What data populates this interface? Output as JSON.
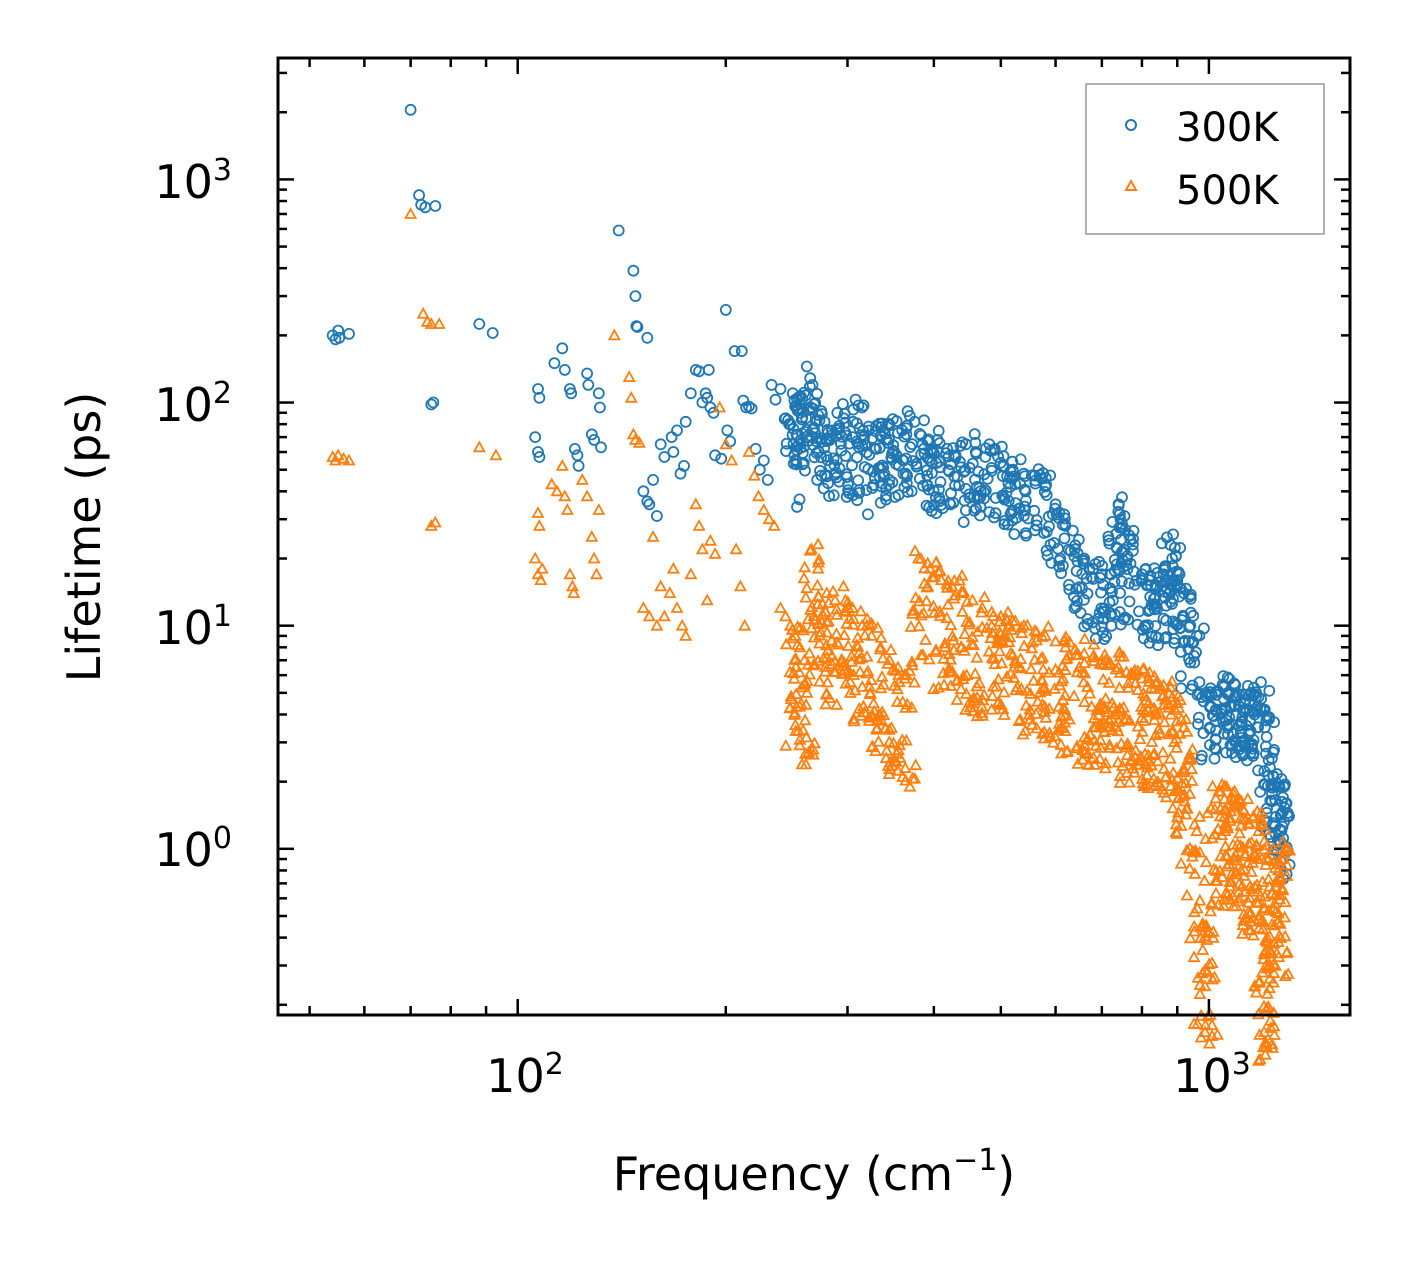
{
  "chart_data": {
    "type": "scatter",
    "title": "",
    "xscale": "log",
    "yscale": "log",
    "xlabel": "Frequency (cm",
    "xlabel_sup": "−1",
    "xlabel_close": ")",
    "ylabel": "Lifetime (ps)",
    "xlim": [
      45,
      1600
    ],
    "ylim": [
      0.18,
      3500
    ],
    "x_ticks": [
      {
        "base": "10",
        "exp": "2",
        "value": 100
      },
      {
        "base": "10",
        "exp": "3",
        "value": 1000
      }
    ],
    "y_ticks": [
      {
        "base": "10",
        "exp": "0",
        "value": 1
      },
      {
        "base": "10",
        "exp": "1",
        "value": 10
      },
      {
        "base": "10",
        "exp": "2",
        "value": 100
      },
      {
        "base": "10",
        "exp": "3",
        "value": 1000
      }
    ],
    "legend_position": "top-right",
    "series": [
      {
        "name": "300K",
        "marker": "circle",
        "color": "#1f77b4",
        "points": [
          [
            54,
            200
          ],
          [
            54.5,
            192
          ],
          [
            55,
            210
          ],
          [
            55.2,
            195
          ],
          [
            57,
            203
          ],
          [
            70,
            2050
          ],
          [
            72,
            850
          ],
          [
            72.5,
            770
          ],
          [
            73.5,
            750
          ],
          [
            76,
            760
          ],
          [
            75,
            98
          ],
          [
            75.5,
            100
          ],
          [
            88,
            225
          ],
          [
            92,
            205
          ],
          [
            107,
            115
          ],
          [
            107.5,
            105
          ],
          [
            106,
            70
          ],
          [
            107,
            60
          ],
          [
            107.5,
            57
          ],
          [
            113,
            150
          ],
          [
            116,
            175
          ],
          [
            117,
            140
          ],
          [
            119,
            115
          ],
          [
            119.5,
            110
          ],
          [
            121,
            62
          ],
          [
            122,
            58
          ],
          [
            122.5,
            52
          ],
          [
            126,
            135
          ],
          [
            126.5,
            120
          ],
          [
            128,
            72
          ],
          [
            129,
            68
          ],
          [
            131,
            110
          ],
          [
            132,
            63
          ],
          [
            131.5,
            95
          ],
          [
            140,
            590
          ],
          [
            147,
            390
          ],
          [
            148,
            300
          ],
          [
            148.5,
            220
          ],
          [
            149,
            218
          ],
          [
            154,
            195
          ],
          [
            152,
            40
          ],
          [
            154,
            36
          ],
          [
            155,
            35
          ],
          [
            157,
            45
          ],
          [
            159,
            31
          ],
          [
            161,
            65
          ],
          [
            163,
            57
          ],
          [
            167,
            70
          ],
          [
            168,
            60
          ],
          [
            170,
            75
          ],
          [
            172,
            48
          ],
          [
            174,
            52
          ],
          [
            175,
            82
          ],
          [
            178,
            110
          ],
          [
            181,
            140
          ],
          [
            183,
            138
          ],
          [
            185,
            100
          ],
          [
            187,
            110
          ],
          [
            188,
            105
          ],
          [
            189,
            140
          ],
          [
            190,
            95
          ],
          [
            192,
            90
          ],
          [
            193,
            58
          ],
          [
            197,
            56
          ],
          [
            200,
            260
          ],
          [
            201,
            75
          ],
          [
            203,
            67
          ],
          [
            206,
            170
          ],
          [
            211,
            170
          ],
          [
            212,
            102
          ],
          [
            214,
            95
          ],
          [
            216,
            96
          ],
          [
            218,
            94
          ],
          [
            221,
            62
          ],
          [
            224,
            50
          ],
          [
            227,
            55
          ],
          [
            230,
            45
          ],
          [
            233,
            120
          ],
          [
            236,
            103
          ],
          [
            240,
            115
          ],
          [
            244,
            85
          ],
          [
            247,
            80
          ],
          [
            250,
            110
          ],
          [
            252,
            96
          ],
          [
            255,
            65
          ],
          [
            262,
            145
          ],
          [
            267,
            120
          ],
          [
            272,
            88
          ],
          [
            278,
            82
          ],
          [
            285,
            75
          ],
          [
            290,
            90
          ],
          [
            296,
            85
          ],
          [
            305,
            70
          ],
          [
            315,
            95
          ],
          [
            322,
            78
          ],
          [
            330,
            62
          ],
          [
            338,
            75
          ],
          [
            345,
            80
          ],
          [
            355,
            73
          ],
          [
            365,
            72
          ],
          [
            375,
            82
          ],
          [
            385,
            65
          ],
          [
            395,
            55
          ],
          [
            405,
            68
          ],
          [
            418,
            62
          ],
          [
            430,
            58
          ],
          [
            445,
            65
          ],
          [
            460,
            60
          ],
          [
            475,
            57
          ],
          [
            490,
            62
          ],
          [
            505,
            52
          ],
          [
            520,
            50
          ],
          [
            540,
            48
          ],
          [
            560,
            47
          ],
          [
            580,
            42
          ],
          [
            600,
            35
          ],
          [
            620,
            28
          ],
          [
            640,
            22
          ],
          [
            660,
            20
          ],
          [
            680,
            18
          ],
          [
            700,
            17
          ],
          [
            720,
            17
          ],
          [
            740,
            35
          ],
          [
            745,
            30
          ],
          [
            755,
            31
          ],
          [
            770,
            19
          ],
          [
            800,
            17
          ],
          [
            820,
            16
          ],
          [
            840,
            15
          ],
          [
            860,
            17
          ],
          [
            880,
            23
          ],
          [
            885,
            20
          ],
          [
            900,
            16
          ],
          [
            920,
            14
          ],
          [
            940,
            10
          ],
          [
            960,
            9
          ],
          [
            990,
            5
          ],
          [
            1010,
            4.9
          ],
          [
            1030,
            5.1
          ],
          [
            1050,
            5.3
          ],
          [
            1070,
            5.0
          ],
          [
            1090,
            4.8
          ],
          [
            1110,
            4.6
          ],
          [
            1130,
            4.9
          ],
          [
            1150,
            5.0
          ],
          [
            1170,
            4.8
          ],
          [
            1190,
            4.7
          ],
          [
            1205,
            3.5
          ],
          [
            1220,
            2.5
          ],
          [
            1240,
            2.1
          ],
          [
            1260,
            1.9
          ],
          [
            1280,
            1.7
          ],
          [
            1295,
            1.6
          ],
          [
            1300,
            1.4
          ]
        ]
      },
      {
        "name": "500K",
        "marker": "triangle",
        "color": "#ff7f0e",
        "points": [
          [
            54,
            57
          ],
          [
            54.5,
            55
          ],
          [
            55,
            58
          ],
          [
            56,
            56
          ],
          [
            57,
            55
          ],
          [
            70,
            700
          ],
          [
            73,
            250
          ],
          [
            74,
            230
          ],
          [
            75,
            225
          ],
          [
            77,
            225
          ],
          [
            75,
            28
          ],
          [
            76,
            29
          ],
          [
            88,
            63
          ],
          [
            93,
            58
          ],
          [
            107,
            32
          ],
          [
            107.5,
            28
          ],
          [
            106,
            20
          ],
          [
            107,
            17
          ],
          [
            108,
            16
          ],
          [
            108.5,
            18
          ],
          [
            112,
            43
          ],
          [
            114,
            40
          ],
          [
            116,
            52
          ],
          [
            117,
            38
          ],
          [
            118,
            33
          ],
          [
            119,
            17
          ],
          [
            120,
            15
          ],
          [
            120.5,
            14
          ],
          [
            124,
            45
          ],
          [
            126,
            38
          ],
          [
            128,
            25
          ],
          [
            129,
            20
          ],
          [
            130,
            17
          ],
          [
            131,
            33
          ],
          [
            138,
            200
          ],
          [
            145,
            130
          ],
          [
            146,
            105
          ],
          [
            147,
            72
          ],
          [
            148,
            68
          ],
          [
            150,
            66
          ],
          [
            152,
            12
          ],
          [
            155,
            11
          ],
          [
            157,
            25
          ],
          [
            159,
            10
          ],
          [
            161,
            15
          ],
          [
            163,
            11
          ],
          [
            166,
            14
          ],
          [
            168,
            18
          ],
          [
            170,
            12
          ],
          [
            173,
            10
          ],
          [
            175,
            9
          ],
          [
            178,
            17
          ],
          [
            181,
            35
          ],
          [
            183,
            28
          ],
          [
            185,
            22
          ],
          [
            188,
            13
          ],
          [
            190,
            24
          ],
          [
            193,
            21
          ],
          [
            196,
            95
          ],
          [
            200,
            65
          ],
          [
            204,
            55
          ],
          [
            207,
            22
          ],
          [
            210,
            15
          ],
          [
            213,
            10
          ],
          [
            216,
            60
          ],
          [
            220,
            47
          ],
          [
            223,
            38
          ],
          [
            227,
            33
          ],
          [
            231,
            30
          ],
          [
            235,
            28
          ],
          [
            240,
            12
          ],
          [
            244,
            11
          ],
          [
            248,
            10
          ],
          [
            252,
            9
          ],
          [
            256,
            8
          ],
          [
            260,
            7
          ],
          [
            266,
            22
          ],
          [
            272,
            18
          ],
          [
            280,
            14
          ],
          [
            288,
            13
          ],
          [
            296,
            15
          ],
          [
            305,
            12
          ],
          [
            315,
            10
          ],
          [
            325,
            9
          ],
          [
            335,
            8
          ],
          [
            345,
            7
          ],
          [
            355,
            6.5
          ],
          [
            365,
            6
          ],
          [
            380,
            20
          ],
          [
            395,
            18
          ],
          [
            410,
            16
          ],
          [
            425,
            15
          ],
          [
            440,
            14
          ],
          [
            455,
            13
          ],
          [
            470,
            12
          ],
          [
            485,
            11.5
          ],
          [
            500,
            11
          ],
          [
            520,
            10.5
          ],
          [
            540,
            10
          ],
          [
            560,
            9.5
          ],
          [
            580,
            9
          ],
          [
            600,
            8.5
          ],
          [
            620,
            8
          ],
          [
            640,
            7.8
          ],
          [
            660,
            7.5
          ],
          [
            680,
            7.2
          ],
          [
            700,
            7
          ],
          [
            720,
            6.8
          ],
          [
            740,
            6.5
          ],
          [
            760,
            6.2
          ],
          [
            780,
            6
          ],
          [
            800,
            5.8
          ],
          [
            820,
            5.6
          ],
          [
            840,
            5.5
          ],
          [
            860,
            5.4
          ],
          [
            880,
            5.3
          ],
          [
            900,
            4.5
          ],
          [
            920,
            3.5
          ],
          [
            940,
            2.5
          ],
          [
            960,
            1.2
          ],
          [
            980,
            0.45
          ],
          [
            1000,
            0.42
          ],
          [
            1020,
            1.5
          ],
          [
            1040,
            1.8
          ],
          [
            1060,
            1.9
          ],
          [
            1080,
            1.7
          ],
          [
            1100,
            1.6
          ],
          [
            1120,
            1.5
          ],
          [
            1140,
            1.3
          ],
          [
            1160,
            1.4
          ],
          [
            1180,
            1.2
          ],
          [
            1200,
            0.32
          ],
          [
            1210,
            0.3
          ],
          [
            1220,
            0.9
          ],
          [
            1240,
            1.0
          ],
          [
            1260,
            0.8
          ],
          [
            1280,
            0.9
          ],
          [
            1300,
            1.0
          ]
        ]
      }
    ]
  }
}
